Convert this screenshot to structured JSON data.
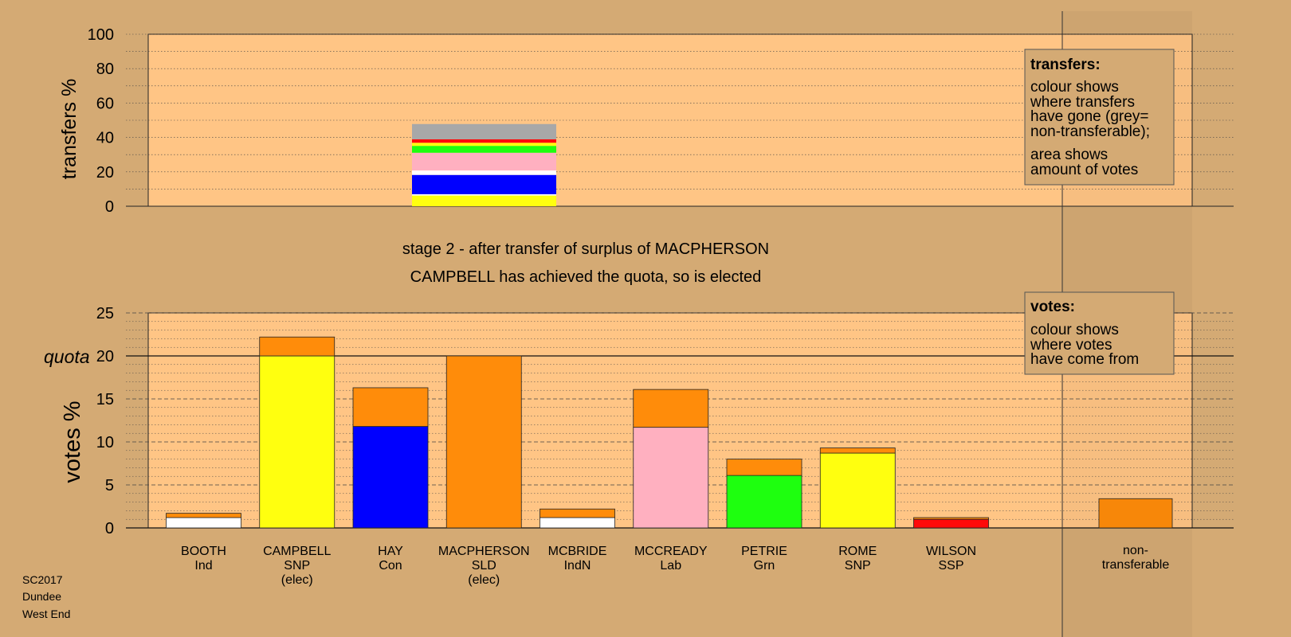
{
  "colors": {
    "background": "#d4aa74",
    "plot_bg": "#ffc585",
    "legend_bg": "#d4aa74",
    "BOOTH": "#ffffff",
    "CAMPBELL": "#ffff0f",
    "HAY": "#0000ff",
    "MACPHERSON": "#ff8c0a",
    "MCBRIDE": "#ffffff",
    "MCCREADY": "#ffb0c0",
    "PETRIE": "#1eff0f",
    "ROME": "#ffff0f",
    "WILSON": "#ff0a0a",
    "non_transferable": "#a8a8a8"
  },
  "stage": {
    "line1": "stage 2 - after transfer of surplus of MACPHERSON",
    "line2": "CAMPBELL has achieved the quota, so is elected"
  },
  "footer": {
    "line1": "SC2017",
    "line2": "Dundee",
    "line3": "West End"
  },
  "legend_transfers": {
    "title": "transfers:",
    "lines": [
      "colour shows",
      "where transfers",
      "have gone (grey=",
      "non-transferable);",
      "area shows",
      "amount of votes"
    ]
  },
  "legend_votes": {
    "title": "votes:",
    "lines": [
      "colour shows",
      "where votes",
      "have come from"
    ]
  },
  "chart_data": [
    {
      "type": "bar",
      "ylabel": "transfers %",
      "ylim": [
        0,
        100
      ],
      "yticks": [
        0,
        20,
        40,
        60,
        80,
        100
      ],
      "grid": true,
      "stack_order": [
        "CAMPBELL",
        "BOOTH",
        "HAY",
        "MCBRIDE",
        "MCCREADY",
        "PETRIE",
        "ROME",
        "WILSON",
        "non_transferable"
      ],
      "transfer_bar": [
        {
          "name": "CAMPBELL",
          "value": 6.2
        },
        {
          "name": "BOOTH",
          "value": 0.8
        },
        {
          "name": "HAY",
          "value": 11.2
        },
        {
          "name": "MCBRIDE",
          "value": 2.6
        },
        {
          "name": "MCCREADY",
          "value": 10.3
        },
        {
          "name": "PETRIE",
          "value": 4.0
        },
        {
          "name": "ROME",
          "value": 1.8
        },
        {
          "name": "WILSON",
          "value": 2.0
        },
        {
          "name": "non_transferable",
          "value": 8.9
        }
      ]
    },
    {
      "type": "bar",
      "ylabel": "votes %",
      "ylim": [
        0,
        25
      ],
      "yticks": [
        0,
        5,
        10,
        15,
        20,
        25
      ],
      "quota": 20,
      "quota_label": "quota",
      "grid": true,
      "categories": [
        {
          "key": "BOOTH",
          "name": "BOOTH",
          "party": "Ind",
          "elected": ""
        },
        {
          "key": "CAMPBELL",
          "name": "CAMPBELL",
          "party": "SNP",
          "elected": "(elec)"
        },
        {
          "key": "HAY",
          "name": "HAY",
          "party": "Con",
          "elected": ""
        },
        {
          "key": "MACPHERSON",
          "name": "MACPHERSON",
          "party": "SLD",
          "elected": "(elec)"
        },
        {
          "key": "MCBRIDE",
          "name": "MCBRIDE",
          "party": "IndN",
          "elected": ""
        },
        {
          "key": "MCCREADY",
          "name": "MCCREADY",
          "party": "Lab",
          "elected": ""
        },
        {
          "key": "PETRIE",
          "name": "PETRIE",
          "party": "Grn",
          "elected": ""
        },
        {
          "key": "ROME",
          "name": "ROME",
          "party": "SNP",
          "elected": ""
        },
        {
          "key": "WILSON",
          "name": "WILSON",
          "party": "SSP",
          "elected": ""
        }
      ],
      "first_preference": [
        1.2,
        20.0,
        11.8,
        20.0,
        1.2,
        11.7,
        6.1,
        8.7,
        1.0
      ],
      "transferred": [
        0.5,
        2.2,
        4.5,
        0.0,
        1.0,
        4.4,
        1.9,
        0.6,
        0.2
      ],
      "non_transferable": {
        "name": "non-",
        "name2": "transferable",
        "value": 3.4
      }
    }
  ]
}
